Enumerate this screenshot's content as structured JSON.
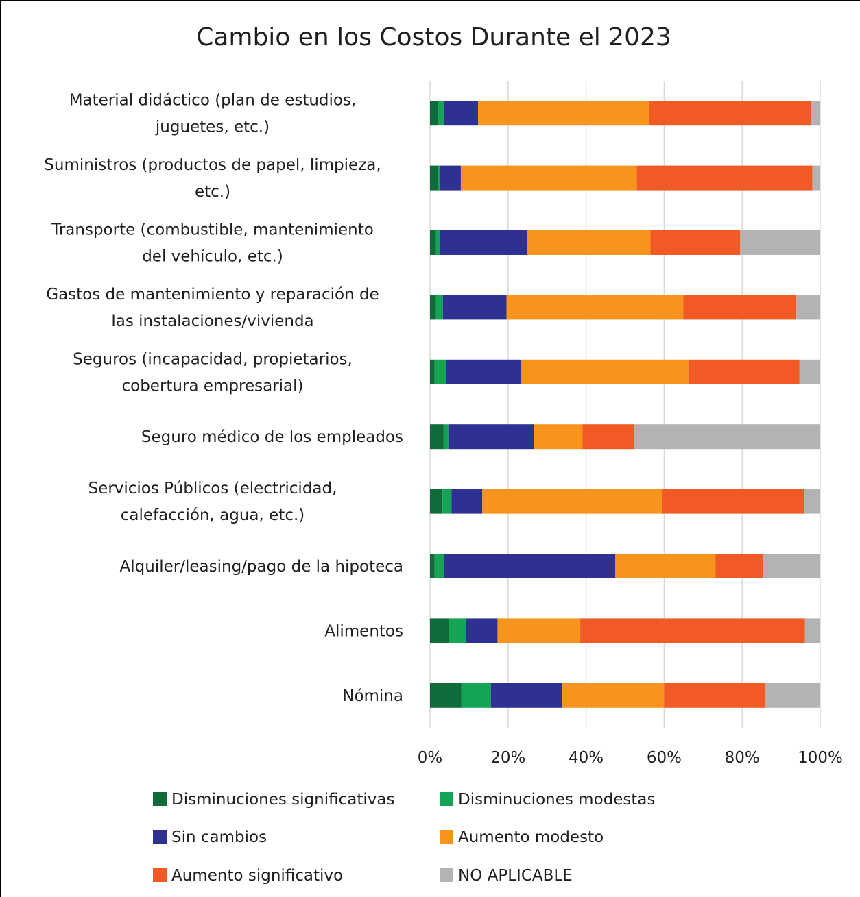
{
  "chart_data": {
    "type": "bar",
    "orientation": "horizontal",
    "stacked": "percent",
    "title": "Cambio en los Costos Durante el 2023",
    "xlabel": "",
    "ylabel": "",
    "xlim": [
      0,
      100
    ],
    "x_ticks": [
      "0%",
      "20%",
      "40%",
      "60%",
      "80%",
      "100%"
    ],
    "grid": true,
    "legend_position": "bottom",
    "categories": [
      [
        "Material didáctico (plan de estudios,",
        "juguetes, etc.)"
      ],
      [
        "Suministros (productos de papel, limpieza,",
        "etc.)"
      ],
      [
        "Transporte (combustible, mantenimiento",
        "del vehículo, etc.)"
      ],
      [
        "Gastos de mantenimiento y reparación de",
        "las instalaciones/vivienda"
      ],
      [
        "Seguros (incapacidad, propietarios,",
        "cobertura empresarial)"
      ],
      [
        "Seguro médico de los empleados"
      ],
      [
        "Servicios Públicos (electricidad,",
        "calefacción, agua, etc.)"
      ],
      [
        "Alquiler/leasing/pago de la hipoteca"
      ],
      [
        "Alimentos"
      ],
      [
        "Nómina"
      ]
    ],
    "series": [
      {
        "name": "Disminuciones significativas",
        "color": "#106b3a",
        "values": [
          2.0,
          2.0,
          1.5,
          1.5,
          1.2,
          3.5,
          3.2,
          1.2,
          4.8,
          8.0
        ]
      },
      {
        "name": "Disminuciones modestas",
        "color": "#15a356",
        "values": [
          1.5,
          0.5,
          1.0,
          1.8,
          3.0,
          1.2,
          2.3,
          2.4,
          4.5,
          7.6
        ]
      },
      {
        "name": "Sin cambios",
        "color": "#2e3192",
        "values": [
          8.8,
          5.4,
          22.5,
          16.3,
          19.1,
          21.9,
          7.9,
          43.9,
          8.0,
          18.2
        ]
      },
      {
        "name": "Aumento modesto",
        "color": "#f7941d",
        "values": [
          43.8,
          45.1,
          31.5,
          45.3,
          42.9,
          12.5,
          46.1,
          25.7,
          21.2,
          26.2
        ]
      },
      {
        "name": "Aumento significativo",
        "color": "#f15a24",
        "values": [
          41.6,
          45.0,
          23.0,
          29.0,
          28.5,
          13.1,
          36.3,
          12.1,
          57.6,
          26.0
        ]
      },
      {
        "name": "NO APLICABLE",
        "color": "#b3b3b3",
        "values": [
          2.3,
          2.0,
          20.5,
          6.1,
          5.3,
          47.8,
          4.2,
          14.7,
          3.9,
          14.0
        ]
      }
    ]
  }
}
